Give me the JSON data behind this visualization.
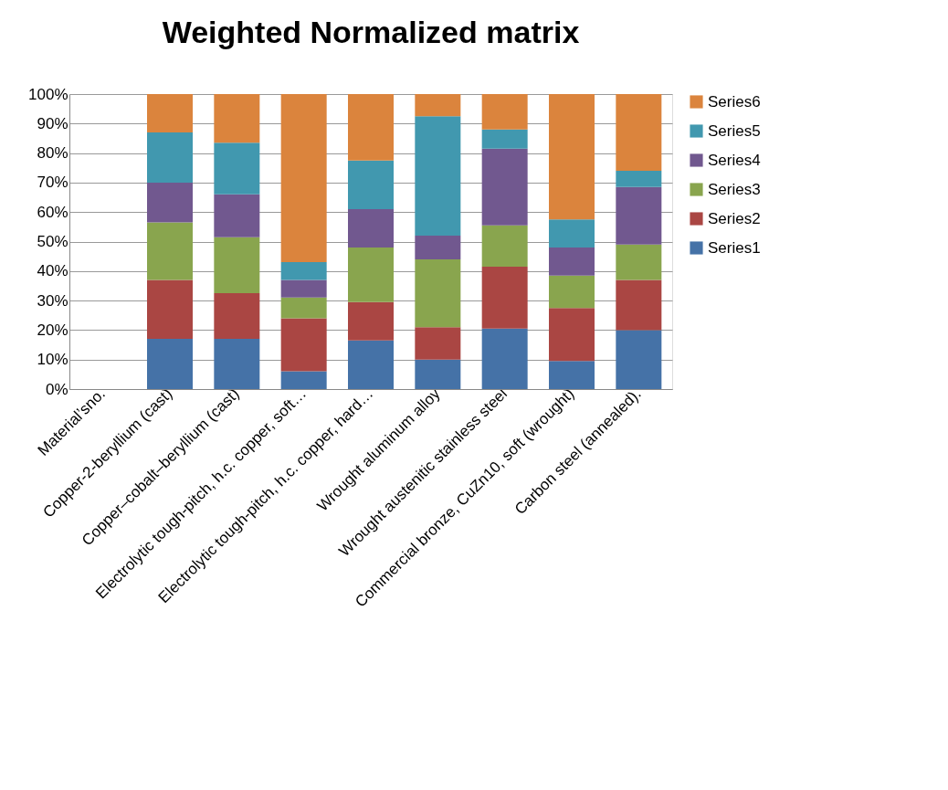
{
  "chart_data": {
    "type": "bar",
    "title": "Weighted Normalized matrix",
    "stacked": true,
    "categories": [
      "Material’sno.",
      "Copper-2-beryllium (cast)",
      "Copper–cobalt–beryllium (cast)",
      "Electrolytic tough-pitch, h.c. copper, soft…",
      "Electrolytic tough-pitch, h.c. copper, hard…",
      "Wrought aluminum alloy",
      "Wrought austenitic stainless steel",
      "Commercial bronze, CuZn10, soft (wrought)",
      "Carbon steel (annealed)."
    ],
    "series": [
      {
        "name": "Series1",
        "color": "#4572a7",
        "values": [
          0,
          17,
          17,
          6,
          16.5,
          10,
          20.5,
          9.5,
          20
        ]
      },
      {
        "name": "Series2",
        "color": "#aa4643",
        "values": [
          0,
          20,
          15.5,
          18,
          13,
          11,
          21,
          18,
          17
        ]
      },
      {
        "name": "Series3",
        "color": "#89a54e",
        "values": [
          0,
          19.5,
          19,
          7,
          18.5,
          23,
          14,
          11,
          12
        ]
      },
      {
        "name": "Series4",
        "color": "#71588f",
        "values": [
          0,
          13.5,
          14.5,
          6,
          13,
          8,
          26,
          9.5,
          19.5
        ]
      },
      {
        "name": "Series5",
        "color": "#4198af",
        "values": [
          0,
          17,
          17.5,
          6,
          16.5,
          40.5,
          6.5,
          9.5,
          5.5
        ]
      },
      {
        "name": "Series6",
        "color": "#db843d",
        "values": [
          0,
          13,
          16.5,
          57,
          22.5,
          7.5,
          12,
          42.5,
          26
        ]
      }
    ],
    "ylim": [
      0,
      100
    ],
    "yticks": [
      {
        "value": 0,
        "label": "0%"
      },
      {
        "value": 10,
        "label": "10%"
      },
      {
        "value": 20,
        "label": "20%"
      },
      {
        "value": 30,
        "label": "30%"
      },
      {
        "value": 40,
        "label": "40%"
      },
      {
        "value": 50,
        "label": "50%"
      },
      {
        "value": 60,
        "label": "60%"
      },
      {
        "value": 70,
        "label": "70%"
      },
      {
        "value": 80,
        "label": "80%"
      },
      {
        "value": 90,
        "label": "90%"
      },
      {
        "value": 100,
        "label": "100%"
      }
    ],
    "grid": "y",
    "legend": "right"
  }
}
